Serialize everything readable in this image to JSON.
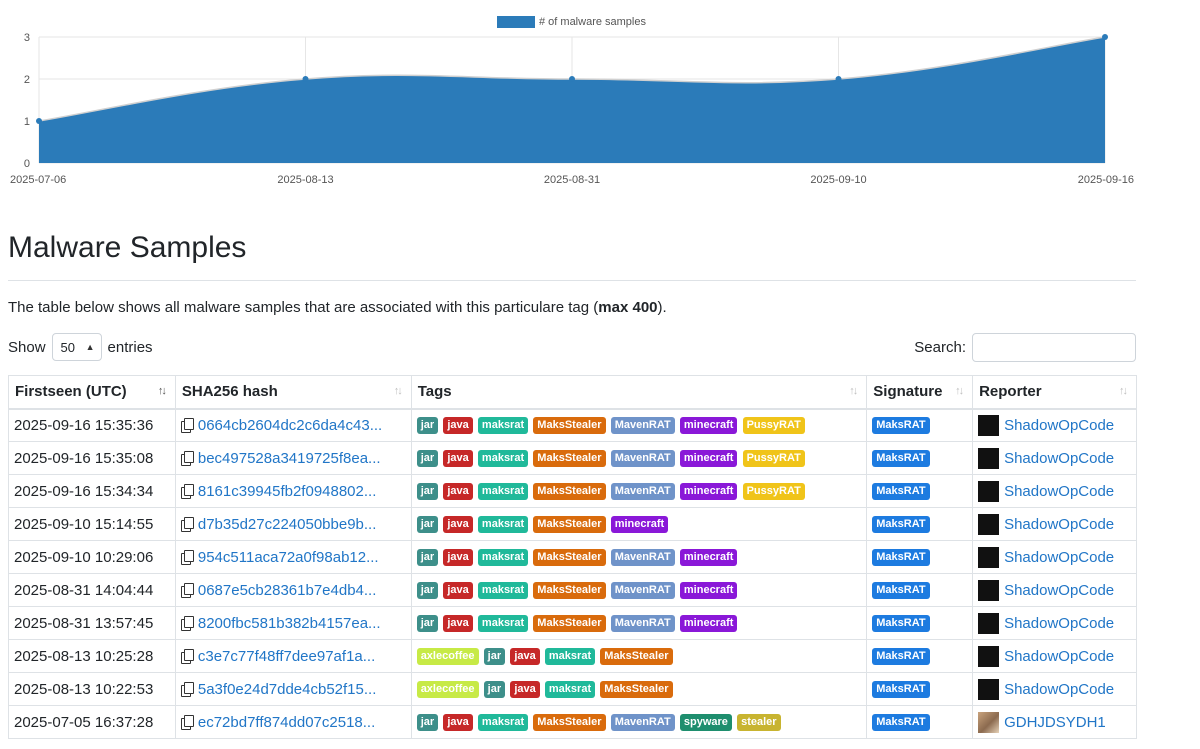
{
  "chart_data": {
    "type": "area",
    "legend": "# of malware samples",
    "legend_color": "#2b7bb9",
    "categories": [
      "2025-07-06",
      "2025-08-13",
      "2025-08-31",
      "2025-09-10",
      "2025-09-16"
    ],
    "values": [
      1,
      2,
      2,
      2,
      3
    ],
    "ylim": [
      0,
      3
    ],
    "yticks": [
      "0",
      "1",
      "2",
      "3"
    ],
    "fill_color": "#2b7bb9",
    "grid": true,
    "legend_position": "top-center"
  },
  "page": {
    "title": "Malware Samples",
    "intro_before": "The table below shows all malware samples that are associated with this particulare tag (",
    "intro_bold": "max 400",
    "intro_after": ")."
  },
  "controls": {
    "show_label": "Show",
    "entries_value": "50",
    "entries_label": "entries",
    "search_label": "Search:",
    "search_value": ""
  },
  "table": {
    "headers": [
      "Firstseen (UTC)",
      "SHA256 hash",
      "Tags",
      "Signature",
      "Reporter"
    ],
    "rows": [
      {
        "date": "2025-09-16 15:35:36",
        "hash": "0664cb2604dc2c6da4c43...",
        "tags": [
          "jar",
          "java",
          "maksrat",
          "MaksStealer",
          "MavenRAT",
          "minecraft",
          "PussyRAT"
        ],
        "signature": "MaksRAT",
        "reporter": "ShadowOpCode",
        "avatar": "dark"
      },
      {
        "date": "2025-09-16 15:35:08",
        "hash": "bec497528a3419725f8ea...",
        "tags": [
          "jar",
          "java",
          "maksrat",
          "MaksStealer",
          "MavenRAT",
          "minecraft",
          "PussyRAT"
        ],
        "signature": "MaksRAT",
        "reporter": "ShadowOpCode",
        "avatar": "dark"
      },
      {
        "date": "2025-09-16 15:34:34",
        "hash": "8161c39945fb2f0948802...",
        "tags": [
          "jar",
          "java",
          "maksrat",
          "MaksStealer",
          "MavenRAT",
          "minecraft",
          "PussyRAT"
        ],
        "signature": "MaksRAT",
        "reporter": "ShadowOpCode",
        "avatar": "dark"
      },
      {
        "date": "2025-09-10 15:14:55",
        "hash": "d7b35d27c224050bbe9b...",
        "tags": [
          "jar",
          "java",
          "maksrat",
          "MaksStealer",
          "minecraft"
        ],
        "signature": "MaksRAT",
        "reporter": "ShadowOpCode",
        "avatar": "dark"
      },
      {
        "date": "2025-09-10 10:29:06",
        "hash": "954c511aca72a0f98ab12...",
        "tags": [
          "jar",
          "java",
          "maksrat",
          "MaksStealer",
          "MavenRAT",
          "minecraft"
        ],
        "signature": "MaksRAT",
        "reporter": "ShadowOpCode",
        "avatar": "dark"
      },
      {
        "date": "2025-08-31 14:04:44",
        "hash": "0687e5cb28361b7e4db4...",
        "tags": [
          "jar",
          "java",
          "maksrat",
          "MaksStealer",
          "MavenRAT",
          "minecraft"
        ],
        "signature": "MaksRAT",
        "reporter": "ShadowOpCode",
        "avatar": "dark"
      },
      {
        "date": "2025-08-31 13:57:45",
        "hash": "8200fbc581b382b4157ea...",
        "tags": [
          "jar",
          "java",
          "maksrat",
          "MaksStealer",
          "MavenRAT",
          "minecraft"
        ],
        "signature": "MaksRAT",
        "reporter": "ShadowOpCode",
        "avatar": "dark"
      },
      {
        "date": "2025-08-13 10:25:28",
        "hash": "c3e7c77f48ff7dee97af1a...",
        "tags": [
          "axlecoffee",
          "jar",
          "java",
          "maksrat",
          "MaksStealer"
        ],
        "signature": "MaksRAT",
        "reporter": "ShadowOpCode",
        "avatar": "dark"
      },
      {
        "date": "2025-08-13 10:22:53",
        "hash": "5a3f0e24d7dde4cb52f15...",
        "tags": [
          "axlecoffee",
          "jar",
          "java",
          "maksrat",
          "MaksStealer"
        ],
        "signature": "MaksRAT",
        "reporter": "ShadowOpCode",
        "avatar": "dark"
      },
      {
        "date": "2025-07-05 16:37:28",
        "hash": "ec72bd7ff874dd07c2518...",
        "tags": [
          "jar",
          "java",
          "maksrat",
          "MaksStealer",
          "MavenRAT",
          "spyware",
          "stealer"
        ],
        "signature": "MaksRAT",
        "reporter": "GDHJDSYDH1",
        "avatar": "light"
      }
    ]
  },
  "tag_colors": {
    "jar": "#3d8f8a",
    "java": "#c62828",
    "maksrat": "#20b99a",
    "MaksStealer": "#d96b0c",
    "MavenRAT": "#6f93c9",
    "minecraft": "#8a18d8",
    "PussyRAT": "#f0c419",
    "axlecoffee": "#c7ea46",
    "spyware": "#1e8e6e",
    "stealer": "#c8b430"
  },
  "signature_color": "#1d7be0",
  "link_color": "#2176c7"
}
